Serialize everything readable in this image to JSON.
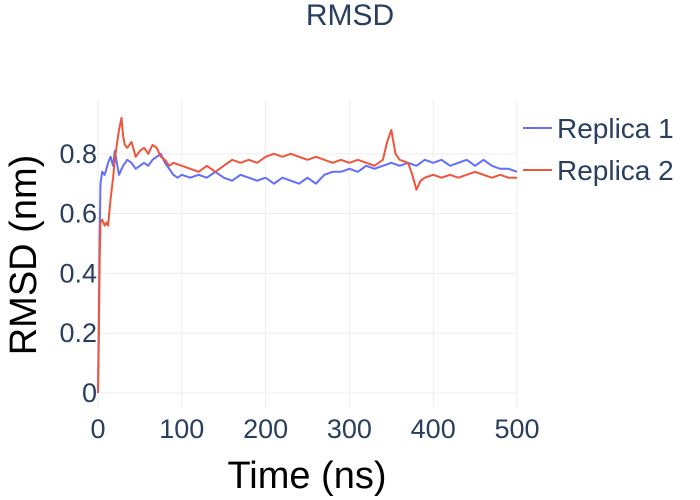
{
  "chart_data": {
    "type": "line",
    "title": "RMSD",
    "xlabel": "Time (ns)",
    "ylabel": "RMSD (nm)",
    "xlim": [
      0,
      500
    ],
    "ylim": [
      -0.05,
      0.98
    ],
    "x_ticks": [
      0,
      100,
      200,
      300,
      400,
      500
    ],
    "y_ticks": [
      0,
      0.2,
      0.4,
      0.6,
      0.8
    ],
    "x_tick_labels": [
      "0",
      "100",
      "200",
      "300",
      "400",
      "500"
    ],
    "y_tick_labels": [
      "0",
      "0.2",
      "0.4",
      "0.6",
      "0.8"
    ],
    "grid": true,
    "legend_position": "top-right",
    "series": [
      {
        "name": "Replica 1",
        "color": "#636efa",
        "x": [
          0,
          1,
          2,
          3,
          5,
          8,
          10,
          12,
          15,
          18,
          20,
          25,
          30,
          35,
          40,
          45,
          50,
          55,
          60,
          65,
          70,
          75,
          80,
          85,
          90,
          95,
          100,
          110,
          120,
          130,
          140,
          150,
          160,
          170,
          180,
          190,
          200,
          210,
          220,
          230,
          240,
          250,
          260,
          270,
          280,
          290,
          300,
          310,
          320,
          330,
          340,
          350,
          360,
          370,
          380,
          390,
          400,
          410,
          420,
          430,
          440,
          450,
          460,
          470,
          480,
          490,
          500
        ],
        "y": [
          0.0,
          0.25,
          0.55,
          0.7,
          0.74,
          0.73,
          0.75,
          0.77,
          0.79,
          0.76,
          0.81,
          0.73,
          0.76,
          0.78,
          0.77,
          0.75,
          0.76,
          0.77,
          0.76,
          0.78,
          0.79,
          0.8,
          0.77,
          0.75,
          0.73,
          0.72,
          0.73,
          0.72,
          0.73,
          0.72,
          0.74,
          0.72,
          0.71,
          0.73,
          0.72,
          0.71,
          0.72,
          0.7,
          0.72,
          0.71,
          0.7,
          0.72,
          0.7,
          0.73,
          0.74,
          0.74,
          0.75,
          0.74,
          0.76,
          0.75,
          0.76,
          0.77,
          0.76,
          0.77,
          0.76,
          0.78,
          0.77,
          0.78,
          0.76,
          0.77,
          0.78,
          0.76,
          0.78,
          0.76,
          0.75,
          0.75,
          0.74
        ]
      },
      {
        "name": "Replica 2",
        "color": "#ef553b",
        "x": [
          0,
          1,
          2,
          3,
          5,
          8,
          10,
          12,
          15,
          18,
          20,
          22,
          25,
          28,
          30,
          32,
          35,
          40,
          45,
          50,
          55,
          60,
          65,
          70,
          75,
          80,
          85,
          90,
          100,
          110,
          120,
          130,
          140,
          150,
          160,
          170,
          180,
          190,
          200,
          210,
          220,
          230,
          240,
          250,
          260,
          270,
          280,
          290,
          300,
          310,
          320,
          330,
          340,
          345,
          350,
          355,
          360,
          370,
          375,
          380,
          385,
          390,
          400,
          410,
          420,
          430,
          440,
          450,
          460,
          470,
          480,
          490,
          500
        ],
        "y": [
          0.0,
          0.18,
          0.45,
          0.57,
          0.58,
          0.56,
          0.57,
          0.56,
          0.65,
          0.72,
          0.78,
          0.82,
          0.88,
          0.92,
          0.86,
          0.83,
          0.82,
          0.84,
          0.79,
          0.81,
          0.82,
          0.8,
          0.83,
          0.82,
          0.79,
          0.78,
          0.76,
          0.77,
          0.76,
          0.75,
          0.74,
          0.76,
          0.74,
          0.76,
          0.78,
          0.77,
          0.78,
          0.77,
          0.79,
          0.8,
          0.79,
          0.8,
          0.79,
          0.78,
          0.79,
          0.78,
          0.77,
          0.78,
          0.77,
          0.78,
          0.77,
          0.76,
          0.78,
          0.84,
          0.88,
          0.8,
          0.78,
          0.77,
          0.73,
          0.68,
          0.71,
          0.72,
          0.73,
          0.72,
          0.73,
          0.72,
          0.73,
          0.74,
          0.73,
          0.72,
          0.73,
          0.72,
          0.72
        ]
      }
    ]
  }
}
